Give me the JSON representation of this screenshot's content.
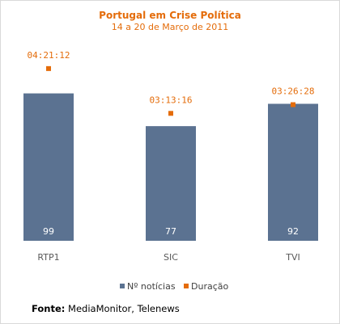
{
  "chart_data": {
    "type": "bar",
    "title": "Portugal em Crise Política",
    "subtitle": "14 a 20 de Março de 2011",
    "categories": [
      "RTP1",
      "SIC",
      "TVI"
    ],
    "series": [
      {
        "name": "Nº notícias",
        "values": [
          99,
          77,
          92
        ],
        "color": "#5b7291"
      },
      {
        "name": "Duração",
        "values": [
          "04:21:12",
          "03:13:16",
          "03:26:28"
        ],
        "color": "#e46c0a"
      }
    ],
    "ylim": [
      0,
      108
    ],
    "grid": false,
    "legend": "bottom",
    "title_color": "#e46c0a"
  },
  "source": {
    "label": "Fonte:",
    "text": "MediaMonitor, Telenews"
  }
}
